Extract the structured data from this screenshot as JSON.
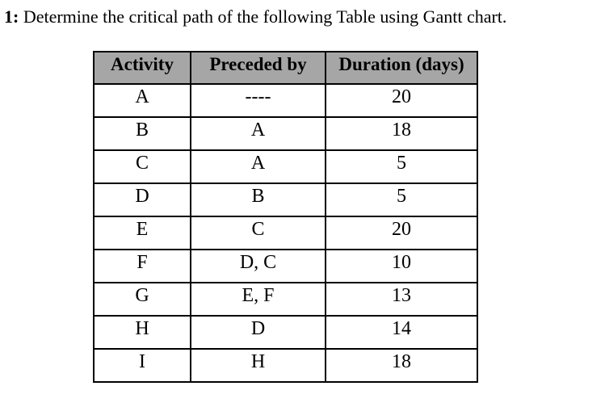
{
  "question": {
    "number": "1:",
    "text": "Determine the critical path of the following Table using Gantt chart."
  },
  "table": {
    "headers": [
      "Activity",
      "Preceded by",
      "Duration (days)"
    ],
    "rows": [
      [
        "A",
        "----",
        "20"
      ],
      [
        "B",
        "A",
        "18"
      ],
      [
        "C",
        "A",
        "5"
      ],
      [
        "D",
        "B",
        "5"
      ],
      [
        "E",
        "C",
        "20"
      ],
      [
        "F",
        "D, C",
        "10"
      ],
      [
        "G",
        "E, F",
        "13"
      ],
      [
        "H",
        "D",
        "14"
      ],
      [
        "I",
        "H",
        "18"
      ]
    ]
  },
  "colors": {
    "header_bg": "#a6a6a6",
    "border": "#000000",
    "text": "#000000",
    "page_bg": "#ffffff"
  }
}
